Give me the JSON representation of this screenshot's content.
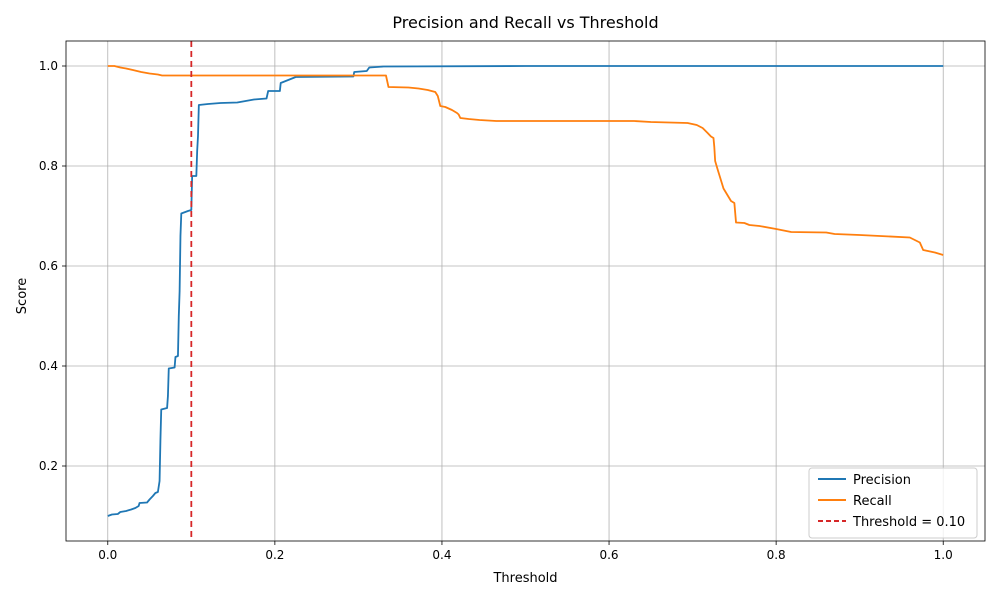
{
  "chart_data": {
    "type": "line",
    "title": "Precision and Recall vs Threshold",
    "xlabel": "Threshold",
    "ylabel": "Score",
    "xlim": [
      -0.05,
      1.05
    ],
    "ylim": [
      0.05,
      1.05
    ],
    "xticks": [
      0.0,
      0.2,
      0.4,
      0.6,
      0.8,
      1.0
    ],
    "xtick_labels": [
      "0.0",
      "0.2",
      "0.4",
      "0.6",
      "0.8",
      "1.0"
    ],
    "yticks": [
      0.2,
      0.4,
      0.6,
      0.8,
      1.0
    ],
    "ytick_labels": [
      "0.2",
      "0.4",
      "0.6",
      "0.8",
      "1.0"
    ],
    "grid": true,
    "legend_position": "lower-right",
    "series": [
      {
        "name": "Precision",
        "color": "#1f77b4",
        "points": [
          [
            0.0,
            0.1
          ],
          [
            0.005,
            0.103
          ],
          [
            0.012,
            0.104
          ],
          [
            0.015,
            0.108
          ],
          [
            0.022,
            0.11
          ],
          [
            0.028,
            0.113
          ],
          [
            0.033,
            0.116
          ],
          [
            0.037,
            0.12
          ],
          [
            0.038,
            0.126
          ],
          [
            0.047,
            0.127
          ],
          [
            0.05,
            0.133
          ],
          [
            0.054,
            0.14
          ],
          [
            0.057,
            0.146
          ],
          [
            0.06,
            0.148
          ],
          [
            0.062,
            0.17
          ],
          [
            0.063,
            0.25
          ],
          [
            0.064,
            0.313
          ],
          [
            0.071,
            0.316
          ],
          [
            0.072,
            0.34
          ],
          [
            0.073,
            0.395
          ],
          [
            0.08,
            0.397
          ],
          [
            0.081,
            0.418
          ],
          [
            0.084,
            0.42
          ],
          [
            0.085,
            0.5
          ],
          [
            0.086,
            0.55
          ],
          [
            0.087,
            0.66
          ],
          [
            0.088,
            0.705
          ],
          [
            0.096,
            0.71
          ],
          [
            0.1,
            0.712
          ],
          [
            0.101,
            0.78
          ],
          [
            0.106,
            0.78
          ],
          [
            0.107,
            0.83
          ],
          [
            0.108,
            0.86
          ],
          [
            0.109,
            0.922
          ],
          [
            0.12,
            0.924
          ],
          [
            0.135,
            0.926
          ],
          [
            0.155,
            0.927
          ],
          [
            0.175,
            0.933
          ],
          [
            0.19,
            0.935
          ],
          [
            0.192,
            0.95
          ],
          [
            0.206,
            0.95
          ],
          [
            0.207,
            0.966
          ],
          [
            0.225,
            0.978
          ],
          [
            0.294,
            0.979
          ],
          [
            0.295,
            0.988
          ],
          [
            0.31,
            0.99
          ],
          [
            0.313,
            0.997
          ],
          [
            0.33,
            0.999
          ],
          [
            0.5,
            1.0
          ],
          [
            1.0,
            1.0
          ]
        ]
      },
      {
        "name": "Recall",
        "color": "#ff7f0e",
        "points": [
          [
            0.0,
            1.0
          ],
          [
            0.008,
            1.0
          ],
          [
            0.015,
            0.997
          ],
          [
            0.022,
            0.995
          ],
          [
            0.03,
            0.992
          ],
          [
            0.04,
            0.988
          ],
          [
            0.05,
            0.985
          ],
          [
            0.06,
            0.983
          ],
          [
            0.065,
            0.981
          ],
          [
            0.1,
            0.981
          ],
          [
            0.333,
            0.981
          ],
          [
            0.336,
            0.958
          ],
          [
            0.36,
            0.957
          ],
          [
            0.372,
            0.955
          ],
          [
            0.383,
            0.952
          ],
          [
            0.392,
            0.948
          ],
          [
            0.395,
            0.94
          ],
          [
            0.398,
            0.92
          ],
          [
            0.404,
            0.918
          ],
          [
            0.412,
            0.912
          ],
          [
            0.418,
            0.906
          ],
          [
            0.42,
            0.903
          ],
          [
            0.422,
            0.896
          ],
          [
            0.432,
            0.894
          ],
          [
            0.445,
            0.892
          ],
          [
            0.465,
            0.89
          ],
          [
            0.63,
            0.89
          ],
          [
            0.65,
            0.888
          ],
          [
            0.694,
            0.886
          ],
          [
            0.705,
            0.882
          ],
          [
            0.712,
            0.876
          ],
          [
            0.718,
            0.866
          ],
          [
            0.722,
            0.859
          ],
          [
            0.725,
            0.856
          ],
          [
            0.726,
            0.838
          ],
          [
            0.727,
            0.81
          ],
          [
            0.73,
            0.793
          ],
          [
            0.737,
            0.755
          ],
          [
            0.746,
            0.73
          ],
          [
            0.75,
            0.726
          ],
          [
            0.752,
            0.687
          ],
          [
            0.762,
            0.686
          ],
          [
            0.768,
            0.682
          ],
          [
            0.78,
            0.68
          ],
          [
            0.8,
            0.674
          ],
          [
            0.818,
            0.668
          ],
          [
            0.86,
            0.667
          ],
          [
            0.87,
            0.664
          ],
          [
            0.9,
            0.662
          ],
          [
            0.96,
            0.657
          ],
          [
            0.966,
            0.652
          ],
          [
            0.972,
            0.647
          ],
          [
            0.976,
            0.632
          ],
          [
            0.99,
            0.627
          ],
          [
            1.0,
            0.622
          ]
        ]
      }
    ],
    "threshold_line": {
      "name": "Threshold = 0.10",
      "x": 0.1,
      "color": "#d62728",
      "style": "dashed"
    }
  }
}
